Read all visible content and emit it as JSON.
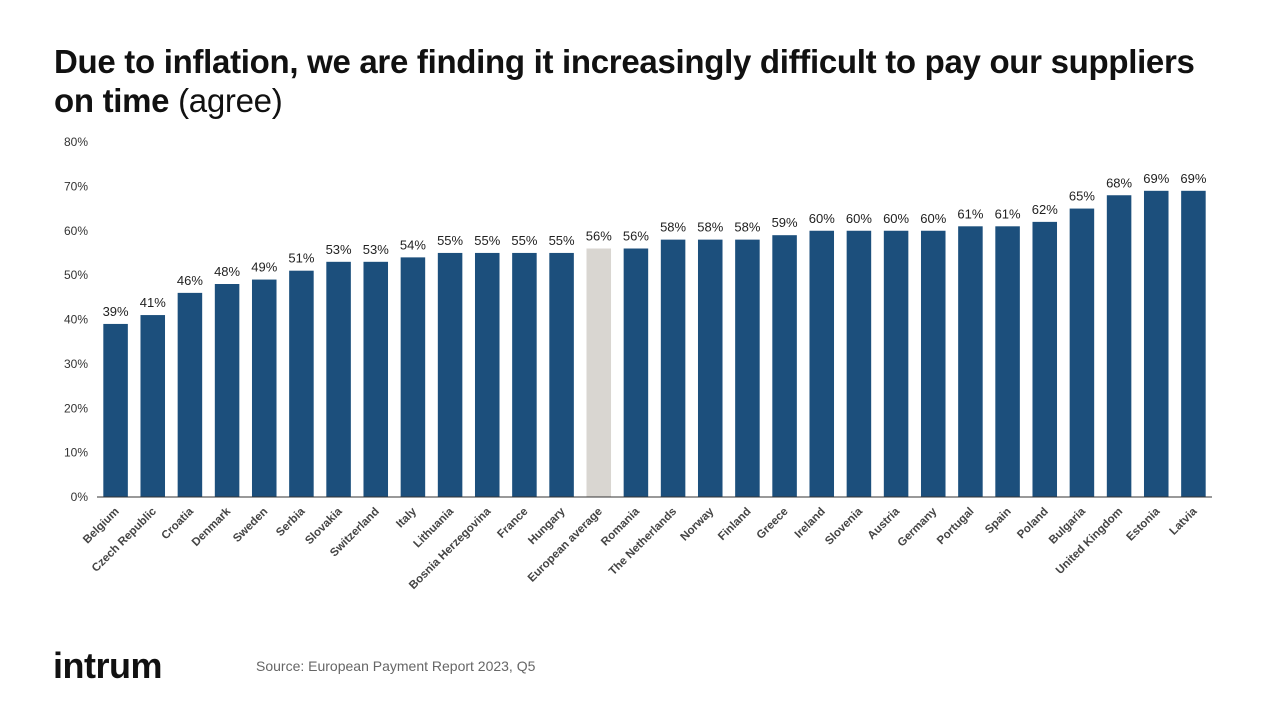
{
  "title": {
    "main": "Due to inflation, we are finding it increasingly difficult to pay our suppliers on time",
    "suffix": " (agree)"
  },
  "footer": {
    "logo": "intrum",
    "source": "Source: European Payment Report 2023, Q5"
  },
  "colors": {
    "bar": "#1c4f7c",
    "highlight": "#d9d6d1",
    "axis": "#333333"
  },
  "chart_data": {
    "type": "bar",
    "title": "Due to inflation, we are finding it increasingly difficult to pay our suppliers on time (agree)",
    "xlabel": "",
    "ylabel": "",
    "ylim": [
      0,
      80
    ],
    "y_ticks": [
      0,
      10,
      20,
      30,
      40,
      50,
      60,
      70,
      80
    ],
    "y_tick_labels": [
      "0%",
      "10%",
      "20%",
      "30%",
      "40%",
      "50%",
      "60%",
      "70%",
      "80%"
    ],
    "grid": false,
    "legend": "none",
    "highlight_category": "European average",
    "categories": [
      "Belgium",
      "Czech Republic",
      "Croatia",
      "Denmark",
      "Sweden",
      "Serbia",
      "Slovakia",
      "Switzerland",
      "Italy",
      "Lithuania",
      "Bosnia Herzegovina",
      "France",
      "Hungary",
      "European average",
      "Romania",
      "The Netherlands",
      "Norway",
      "Finland",
      "Greece",
      "Ireland",
      "Slovenia",
      "Austria",
      "Germany",
      "Portugal",
      "Spain",
      "Poland",
      "Bulgaria",
      "United Kingdom",
      "Estonia",
      "Latvia"
    ],
    "values": [
      39,
      41,
      46,
      48,
      49,
      51,
      53,
      53,
      54,
      55,
      55,
      55,
      55,
      56,
      56,
      58,
      58,
      58,
      59,
      60,
      60,
      60,
      60,
      61,
      61,
      62,
      65,
      68,
      69,
      69
    ],
    "value_labels": [
      "39%",
      "41%",
      "46%",
      "48%",
      "49%",
      "51%",
      "53%",
      "53%",
      "54%",
      "55%",
      "55%",
      "55%",
      "55%",
      "56%",
      "56%",
      "58%",
      "58%",
      "58%",
      "59%",
      "60%",
      "60%",
      "60%",
      "60%",
      "61%",
      "61%",
      "62%",
      "65%",
      "68%",
      "69%",
      "69%"
    ]
  }
}
